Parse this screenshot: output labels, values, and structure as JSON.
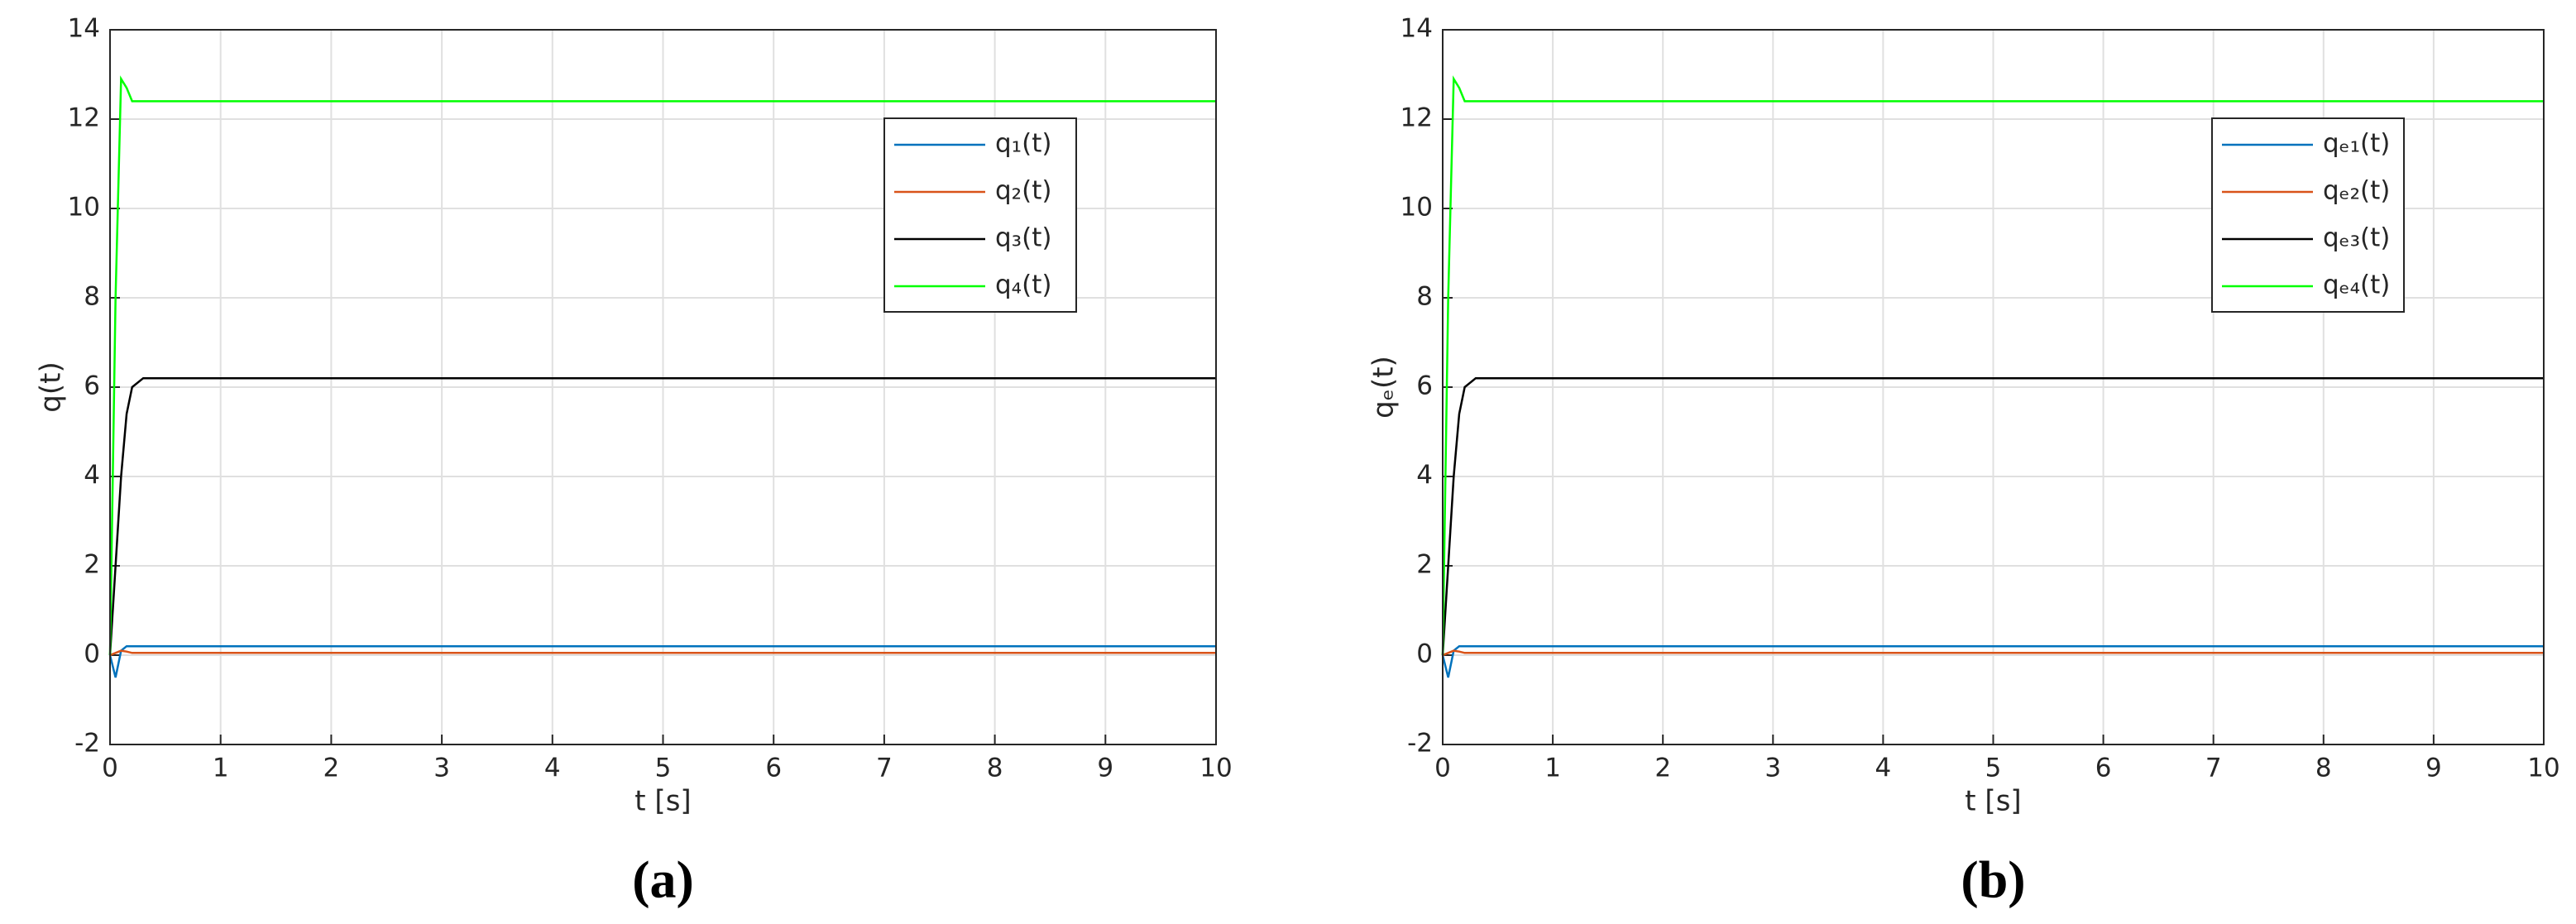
{
  "chart_data": [
    {
      "type": "line",
      "caption": "(a)",
      "xlabel": "t [s]",
      "ylabel": "q(t)",
      "x": [
        0,
        0.05,
        0.1,
        0.15,
        0.2,
        0.3,
        10
      ],
      "series": [
        {
          "name": "q₁(t)",
          "color": "#0072bd",
          "values": [
            0,
            -0.5,
            0.1,
            0.2,
            0.2,
            0.2,
            0.2
          ]
        },
        {
          "name": "q₂(t)",
          "color": "#d95319",
          "values": [
            0,
            0.05,
            0.1,
            0.08,
            0.05,
            0.05,
            0.05
          ]
        },
        {
          "name": "q₃(t)",
          "color": "#000000",
          "values": [
            0,
            2,
            4,
            5.4,
            6,
            6.2,
            6.2
          ]
        },
        {
          "name": "q₄(t)",
          "color": "#00ff00",
          "values": [
            0,
            8,
            12.9,
            12.7,
            12.4,
            12.4,
            12.4
          ]
        }
      ],
      "xlim": [
        0,
        10
      ],
      "xticks": [
        0,
        1,
        2,
        3,
        4,
        5,
        6,
        7,
        8,
        9,
        10
      ],
      "ylim": [
        -2,
        14
      ],
      "yticks": [
        -2,
        0,
        2,
        4,
        6,
        8,
        10,
        12,
        14
      ],
      "grid": true,
      "legend": "top-right"
    },
    {
      "type": "line",
      "caption": "(b)",
      "xlabel": "t [s]",
      "ylabel": "qₑ(t)",
      "x": [
        0,
        0.05,
        0.1,
        0.15,
        0.2,
        0.3,
        10
      ],
      "series": [
        {
          "name": "qₑ₁(t)",
          "color": "#0072bd",
          "values": [
            0,
            -0.5,
            0.1,
            0.2,
            0.2,
            0.2,
            0.2
          ]
        },
        {
          "name": "qₑ₂(t)",
          "color": "#d95319",
          "values": [
            0,
            0.05,
            0.1,
            0.08,
            0.05,
            0.05,
            0.05
          ]
        },
        {
          "name": "qₑ₃(t)",
          "color": "#000000",
          "values": [
            0,
            2,
            4,
            5.4,
            6,
            6.2,
            6.2
          ]
        },
        {
          "name": "qₑ₄(t)",
          "color": "#00ff00",
          "values": [
            0,
            8,
            12.9,
            12.7,
            12.4,
            12.4,
            12.4
          ]
        }
      ],
      "xlim": [
        0,
        10
      ],
      "xticks": [
        0,
        1,
        2,
        3,
        4,
        5,
        6,
        7,
        8,
        9,
        10
      ],
      "ylim": [
        -2,
        14
      ],
      "yticks": [
        -2,
        0,
        2,
        4,
        6,
        8,
        10,
        12,
        14
      ],
      "grid": true,
      "legend": "top-right"
    }
  ]
}
